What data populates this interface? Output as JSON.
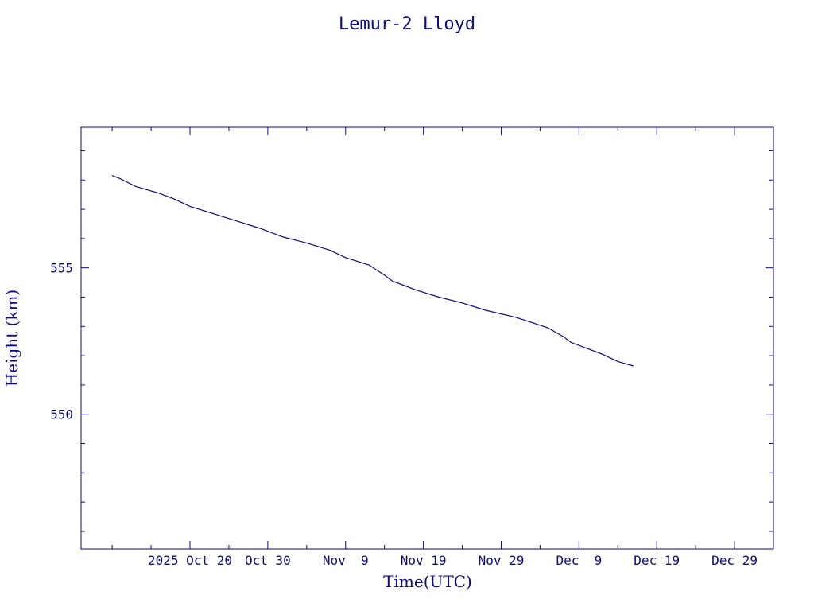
{
  "chart_data": {
    "type": "line",
    "title": "Lemur-2 Lloyd",
    "xlabel": "Time(UTC)",
    "ylabel": "Height (km)",
    "grid": false,
    "xlim": [
      "2025-10-06",
      "2026-01-03"
    ],
    "ylim": [
      545.4,
      559.8
    ],
    "x_tick_labels": [
      {
        "date": "2025-10-20",
        "label": "2025 Oct 20"
      },
      {
        "date": "2025-10-30",
        "label": "Oct 30"
      },
      {
        "date": "2025-11-09",
        "label": "Nov  9"
      },
      {
        "date": "2025-11-19",
        "label": "Nov 19"
      },
      {
        "date": "2025-11-29",
        "label": "Nov 29"
      },
      {
        "date": "2025-12-09",
        "label": "Dec  9"
      },
      {
        "date": "2025-12-19",
        "label": "Dec 19"
      },
      {
        "date": "2025-12-29",
        "label": "Dec 29"
      }
    ],
    "y_tick_labels": [
      {
        "value": 550,
        "label": "550"
      },
      {
        "value": 555,
        "label": "555"
      }
    ],
    "series": [
      {
        "color": "#0a0a8a",
        "points": [
          {
            "x": "2025-10-10",
            "y": 558.15
          },
          {
            "x": "2025-10-11",
            "y": 558.05
          },
          {
            "x": "2025-10-13",
            "y": 557.78
          },
          {
            "x": "2025-10-16",
            "y": 557.55
          },
          {
            "x": "2025-10-18",
            "y": 557.35
          },
          {
            "x": "2025-10-20",
            "y": 557.1
          },
          {
            "x": "2025-10-23",
            "y": 556.85
          },
          {
            "x": "2025-10-26",
            "y": 556.6
          },
          {
            "x": "2025-10-29",
            "y": 556.35
          },
          {
            "x": "2025-11-01",
            "y": 556.05
          },
          {
            "x": "2025-11-04",
            "y": 555.85
          },
          {
            "x": "2025-11-07",
            "y": 555.6
          },
          {
            "x": "2025-11-09",
            "y": 555.35
          },
          {
            "x": "2025-11-12",
            "y": 555.1
          },
          {
            "x": "2025-11-14",
            "y": 554.75
          },
          {
            "x": "2025-11-15",
            "y": 554.55
          },
          {
            "x": "2025-11-18",
            "y": 554.25
          },
          {
            "x": "2025-11-21",
            "y": 554.0
          },
          {
            "x": "2025-11-24",
            "y": 553.8
          },
          {
            "x": "2025-11-27",
            "y": 553.55
          },
          {
            "x": "2025-12-01",
            "y": 553.3
          },
          {
            "x": "2025-12-05",
            "y": 552.95
          },
          {
            "x": "2025-12-07",
            "y": 552.65
          },
          {
            "x": "2025-12-08",
            "y": 552.45
          },
          {
            "x": "2025-12-12",
            "y": 552.05
          },
          {
            "x": "2025-12-14",
            "y": 551.8
          },
          {
            "x": "2025-12-16",
            "y": 551.65
          }
        ]
      }
    ]
  }
}
